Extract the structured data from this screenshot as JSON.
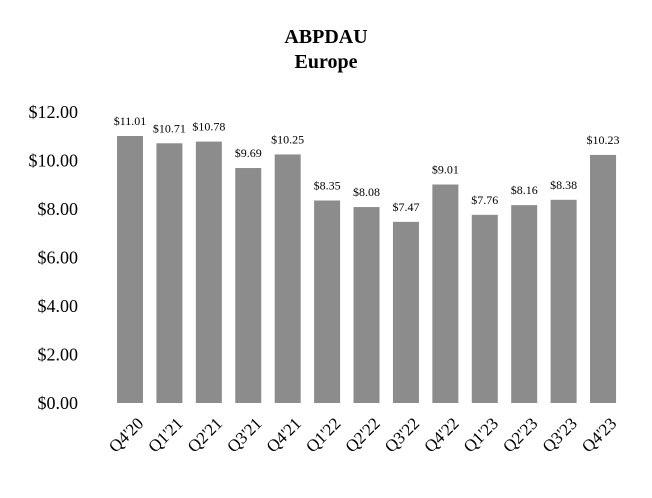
{
  "chart_data": {
    "type": "bar",
    "title": "ABPDAU",
    "subtitle": "Europe",
    "xlabel": "",
    "ylabel": "",
    "categories": [
      "Q4'20",
      "Q1'21",
      "Q2'21",
      "Q3'21",
      "Q4'21",
      "Q1'22",
      "Q2'22",
      "Q3'22",
      "Q4'22",
      "Q1'23",
      "Q2'23",
      "Q3'23",
      "Q4'23"
    ],
    "values": [
      11.01,
      10.71,
      10.78,
      9.69,
      10.25,
      8.35,
      8.08,
      7.47,
      9.01,
      7.76,
      8.16,
      8.38,
      10.23
    ],
    "data_labels": [
      "$11.01",
      "$10.71",
      "$10.78",
      "$9.69",
      "$10.25",
      "$8.35",
      "$8.08",
      "$7.47",
      "$9.01",
      "$7.76",
      "$8.16",
      "$8.38",
      "$10.23"
    ],
    "ylim": [
      0,
      12
    ],
    "yticks": [
      0,
      2,
      4,
      6,
      8,
      10,
      12
    ],
    "ytick_labels": [
      "$0.00",
      "$2.00",
      "$4.00",
      "$6.00",
      "$8.00",
      "$10.00",
      "$12.00"
    ],
    "bar_color": "#8c8c8c",
    "grid": false,
    "legend": "none"
  }
}
